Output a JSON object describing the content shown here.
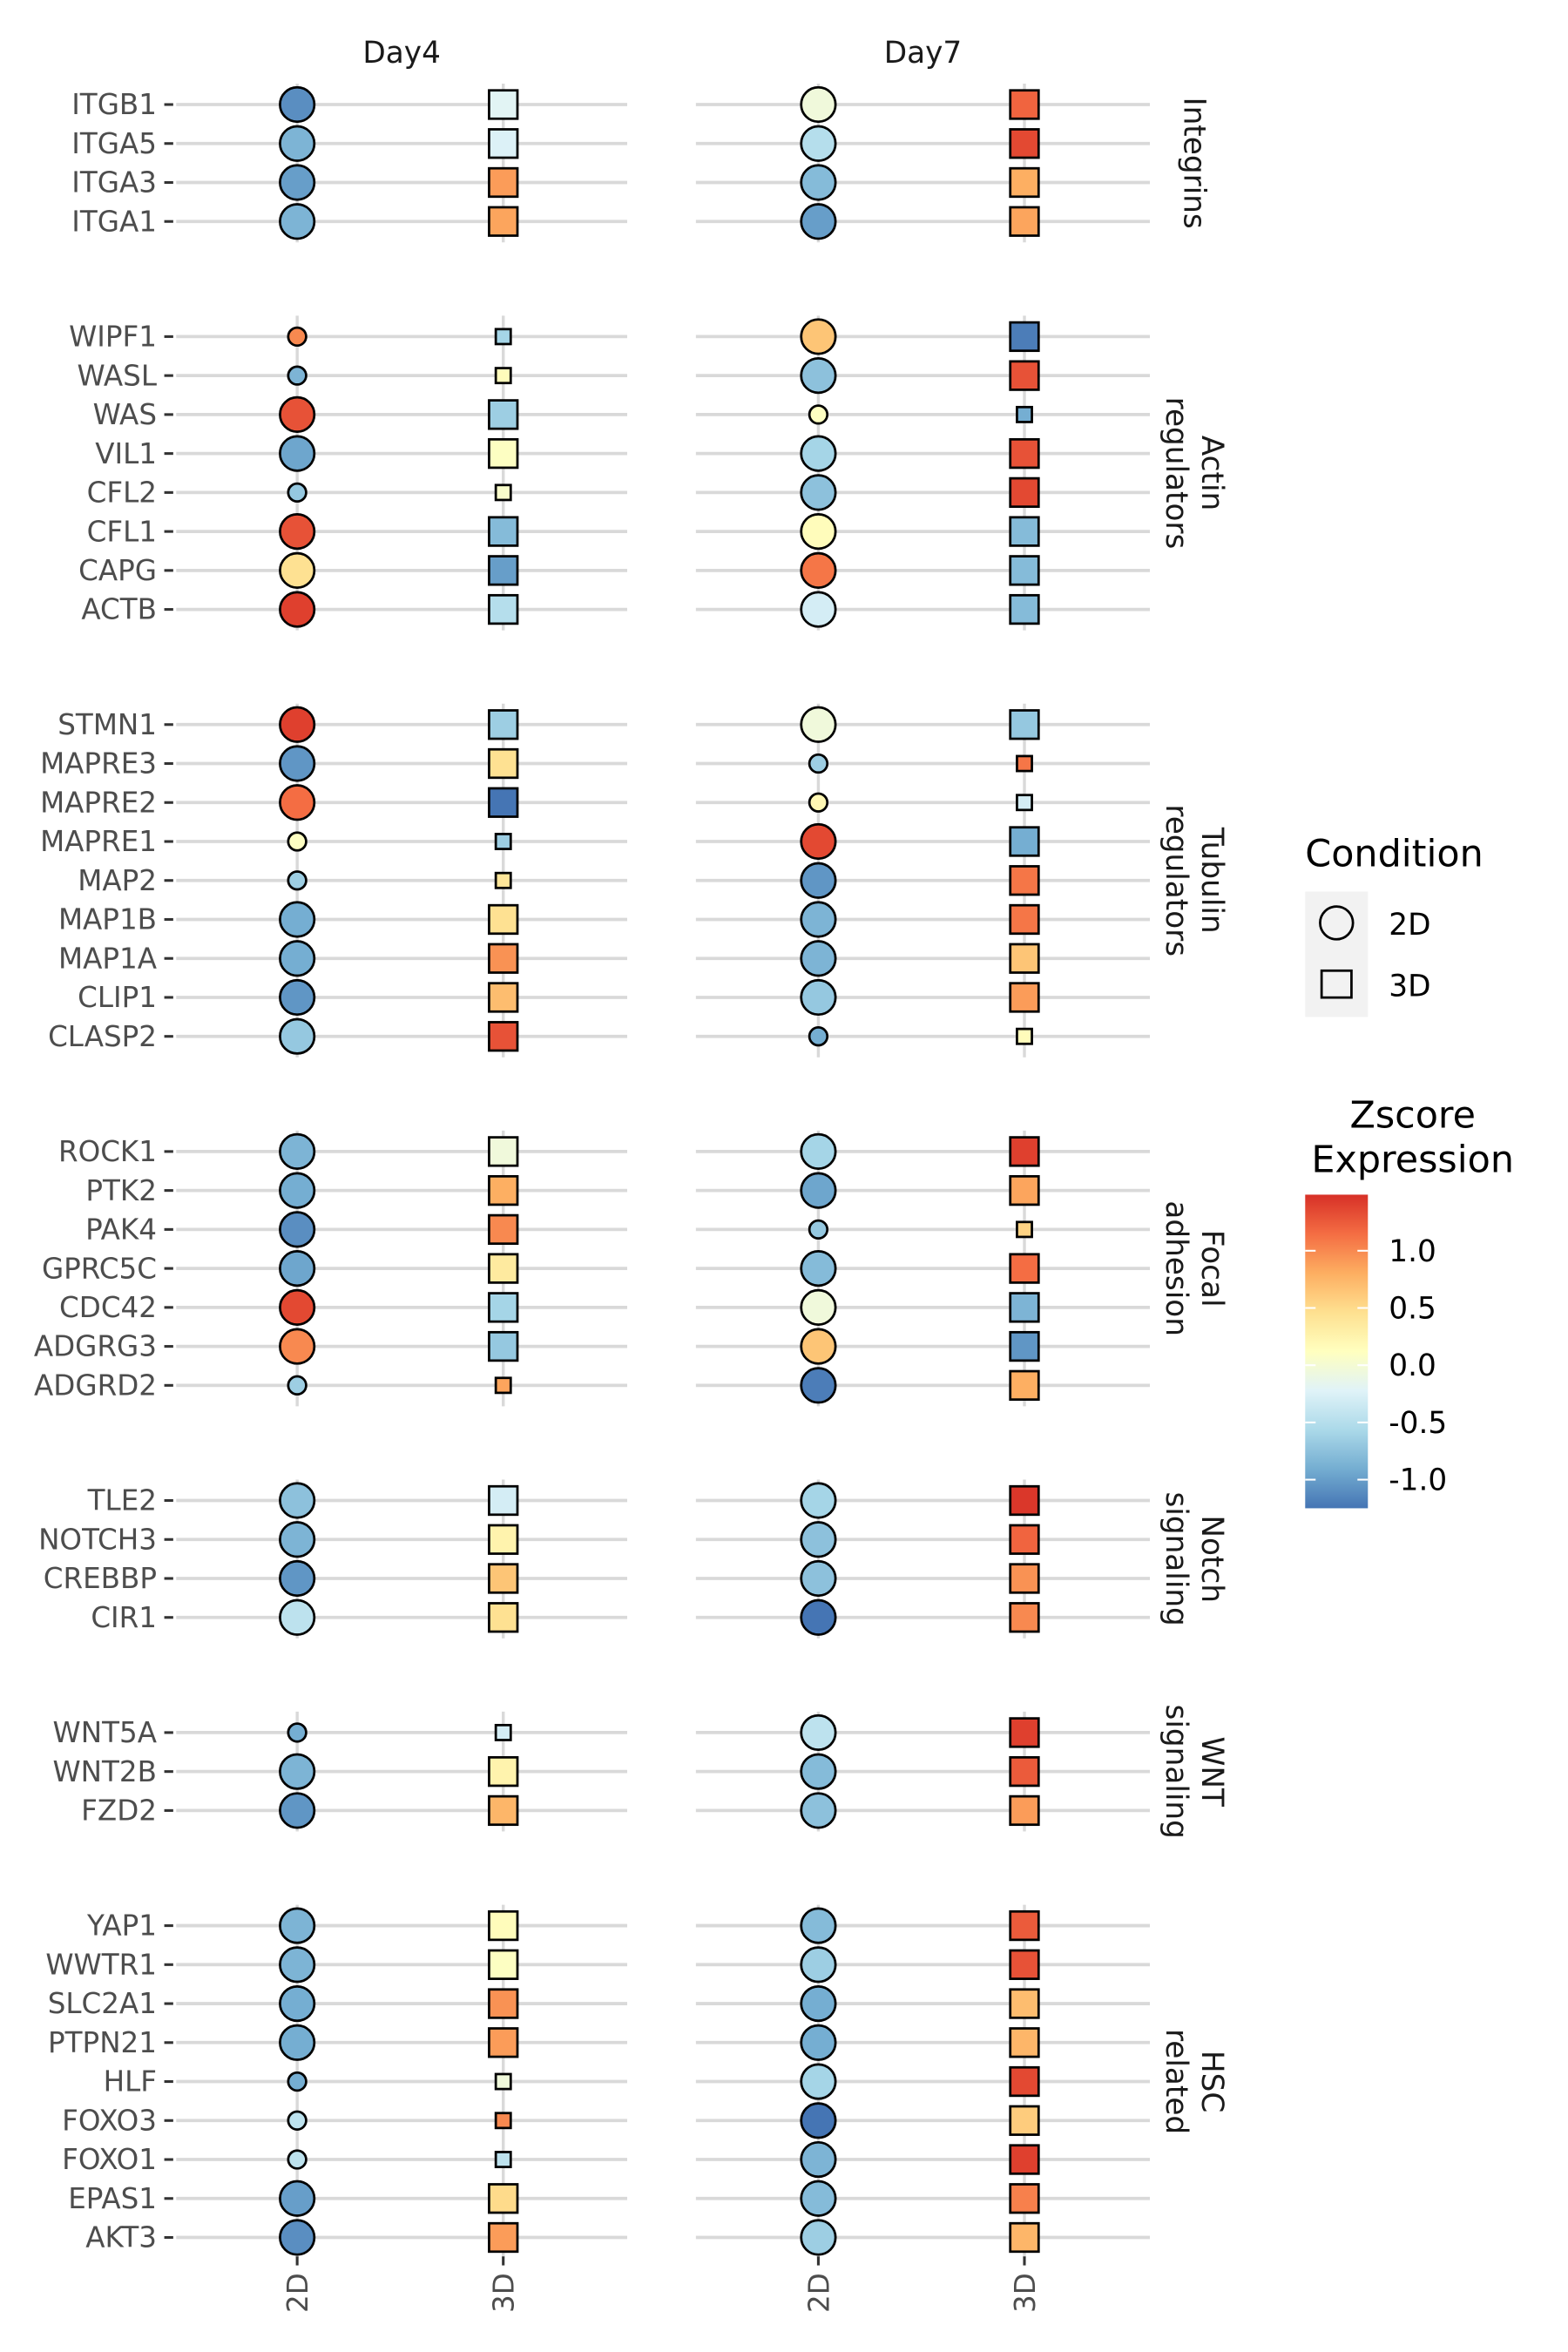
{
  "chart_data": {
    "type": "scatter",
    "subtype": "dot-plot",
    "columns": [
      "Day4",
      "Day7"
    ],
    "x_categories": [
      "2D",
      "3D"
    ],
    "legend": {
      "shape_title": "Condition",
      "shapes": [
        {
          "label": "2D",
          "shape": "circle"
        },
        {
          "label": "3D",
          "shape": "square"
        }
      ],
      "color_title_lines": [
        "Zscore",
        "Expression"
      ],
      "color_ticks": [
        1.0,
        0.5,
        0.0,
        -0.5,
        -1.0
      ],
      "color_tick_labels": [
        "1.0",
        "0.5",
        "0.0",
        "-0.5",
        "-1.0"
      ],
      "color_range": [
        -1.25,
        1.49
      ],
      "palette": [
        "#4575b4",
        "#74add1",
        "#abd9e9",
        "#e0f3f8",
        "#ffffbf",
        "#fee090",
        "#fdae61",
        "#f46d43",
        "#d73027"
      ],
      "placement": "right"
    },
    "value_order": [
      "Day4 2D",
      "Day4 3D",
      "Day7 2D",
      "Day7 3D"
    ],
    "marker_sizes": "large or small, shown by marker size",
    "groups": [
      {
        "label_lines": [
          "Integrins"
        ],
        "genes": [
          {
            "gene": "ITGB1",
            "values": [
              -1.1,
              -0.2,
              -0.05,
              1.2
            ],
            "sizes": [
              "large",
              "large",
              "large",
              "large"
            ]
          },
          {
            "gene": "ITGA5",
            "values": [
              -0.85,
              -0.25,
              -0.5,
              1.35
            ],
            "sizes": [
              "large",
              "large",
              "large",
              "large"
            ]
          },
          {
            "gene": "ITGA3",
            "values": [
              -1.0,
              0.9,
              -0.8,
              0.8
            ],
            "sizes": [
              "large",
              "large",
              "large",
              "large"
            ]
          },
          {
            "gene": "ITGA1",
            "values": [
              -0.85,
              0.85,
              -1.0,
              0.85
            ],
            "sizes": [
              "large",
              "large",
              "large",
              "large"
            ]
          }
        ]
      },
      {
        "label_lines": [
          "Actin",
          "regulators"
        ],
        "genes": [
          {
            "gene": "WIPF1",
            "values": [
              1.0,
              -0.6,
              0.65,
              -1.2
            ],
            "sizes": [
              "small",
              "small",
              "large",
              "large"
            ]
          },
          {
            "gene": "WASL",
            "values": [
              -0.85,
              0.15,
              -0.75,
              1.3
            ],
            "sizes": [
              "small",
              "small",
              "large",
              "large"
            ]
          },
          {
            "gene": "WAS",
            "values": [
              1.3,
              -0.65,
              0.1,
              -0.9
            ],
            "sizes": [
              "large",
              "large",
              "small",
              "small"
            ]
          },
          {
            "gene": "VIL1",
            "values": [
              -0.95,
              0.1,
              -0.6,
              1.3
            ],
            "sizes": [
              "large",
              "large",
              "large",
              "large"
            ]
          },
          {
            "gene": "CFL2",
            "values": [
              -0.7,
              0.05,
              -0.75,
              1.35
            ],
            "sizes": [
              "small",
              "small",
              "large",
              "large"
            ]
          },
          {
            "gene": "CFL1",
            "values": [
              1.3,
              -0.8,
              0.15,
              -0.8
            ],
            "sizes": [
              "large",
              "large",
              "large",
              "large"
            ]
          },
          {
            "gene": "CAPG",
            "values": [
              0.45,
              -1.0,
              1.1,
              -0.8
            ],
            "sizes": [
              "large",
              "large",
              "large",
              "large"
            ]
          },
          {
            "gene": "ACTB",
            "values": [
              1.4,
              -0.5,
              -0.3,
              -0.8
            ],
            "sizes": [
              "large",
              "large",
              "large",
              "large"
            ]
          }
        ]
      },
      {
        "label_lines": [
          "Tubulin",
          "regulators"
        ],
        "genes": [
          {
            "gene": "STMN1",
            "values": [
              1.4,
              -0.65,
              -0.05,
              -0.7
            ],
            "sizes": [
              "large",
              "large",
              "large",
              "large"
            ]
          },
          {
            "gene": "MAPRE3",
            "values": [
              -1.05,
              0.45,
              -0.65,
              1.1
            ],
            "sizes": [
              "large",
              "large",
              "small",
              "small"
            ]
          },
          {
            "gene": "MAPRE2",
            "values": [
              1.15,
              -1.25,
              0.2,
              -0.3
            ],
            "sizes": [
              "large",
              "large",
              "small",
              "small"
            ]
          },
          {
            "gene": "MAPRE1",
            "values": [
              0.1,
              -0.65,
              1.35,
              -0.9
            ],
            "sizes": [
              "small",
              "small",
              "large",
              "large"
            ]
          },
          {
            "gene": "MAP2",
            "values": [
              -0.65,
              0.4,
              -1.05,
              1.1
            ],
            "sizes": [
              "small",
              "small",
              "large",
              "large"
            ]
          },
          {
            "gene": "MAP1B",
            "values": [
              -0.9,
              0.45,
              -0.85,
              1.1
            ],
            "sizes": [
              "large",
              "large",
              "large",
              "large"
            ]
          },
          {
            "gene": "MAP1A",
            "values": [
              -0.9,
              0.95,
              -0.85,
              0.65
            ],
            "sizes": [
              "large",
              "large",
              "large",
              "large"
            ]
          },
          {
            "gene": "CLIP1",
            "values": [
              -1.05,
              0.7,
              -0.7,
              0.9
            ],
            "sizes": [
              "large",
              "large",
              "large",
              "large"
            ]
          },
          {
            "gene": "CLASP2",
            "values": [
              -0.7,
              1.3,
              -0.9,
              0.15
            ],
            "sizes": [
              "large",
              "large",
              "small",
              "small"
            ]
          }
        ]
      },
      {
        "label_lines": [
          "Focal",
          "adhesion"
        ],
        "genes": [
          {
            "gene": "ROCK1",
            "values": [
              -0.85,
              -0.05,
              -0.6,
              1.4
            ],
            "sizes": [
              "large",
              "large",
              "large",
              "large"
            ]
          },
          {
            "gene": "PTK2",
            "values": [
              -0.9,
              0.8,
              -0.95,
              0.85
            ],
            "sizes": [
              "large",
              "large",
              "large",
              "large"
            ]
          },
          {
            "gene": "PAK4",
            "values": [
              -1.1,
              1.0,
              -0.7,
              0.55
            ],
            "sizes": [
              "large",
              "large",
              "small",
              "small"
            ]
          },
          {
            "gene": "GPRC5C",
            "values": [
              -0.95,
              0.35,
              -0.8,
              1.15
            ],
            "sizes": [
              "large",
              "large",
              "large",
              "large"
            ]
          },
          {
            "gene": "CDC42",
            "values": [
              1.35,
              -0.6,
              -0.05,
              -0.85
            ],
            "sizes": [
              "large",
              "large",
              "large",
              "large"
            ]
          },
          {
            "gene": "ADGRG3",
            "values": [
              1.0,
              -0.7,
              0.65,
              -1.05
            ],
            "sizes": [
              "large",
              "large",
              "large",
              "large"
            ]
          },
          {
            "gene": "ADGRD2",
            "values": [
              -0.65,
              0.85,
              -1.2,
              0.8
            ],
            "sizes": [
              "small",
              "small",
              "large",
              "large"
            ]
          }
        ]
      },
      {
        "label_lines": [
          "Notch",
          "signaling"
        ],
        "genes": [
          {
            "gene": "TLE2",
            "values": [
              -0.75,
              -0.3,
              -0.6,
              1.45
            ],
            "sizes": [
              "large",
              "large",
              "large",
              "large"
            ]
          },
          {
            "gene": "NOTCH3",
            "values": [
              -0.85,
              0.25,
              -0.75,
              1.2
            ],
            "sizes": [
              "large",
              "large",
              "large",
              "large"
            ]
          },
          {
            "gene": "CREBBP",
            "values": [
              -1.05,
              0.65,
              -0.75,
              0.95
            ],
            "sizes": [
              "large",
              "large",
              "large",
              "large"
            ]
          },
          {
            "gene": "CIR1",
            "values": [
              -0.45,
              0.45,
              -1.25,
              1.0
            ],
            "sizes": [
              "large",
              "large",
              "large",
              "large"
            ]
          }
        ]
      },
      {
        "label_lines": [
          "WNT",
          "signaling"
        ],
        "genes": [
          {
            "gene": "WNT5A",
            "values": [
              -0.9,
              -0.3,
              -0.45,
              1.4
            ],
            "sizes": [
              "small",
              "small",
              "large",
              "large"
            ]
          },
          {
            "gene": "WNT2B",
            "values": [
              -0.85,
              0.25,
              -0.8,
              1.25
            ],
            "sizes": [
              "large",
              "large",
              "large",
              "large"
            ]
          },
          {
            "gene": "FZD2",
            "values": [
              -1.05,
              0.75,
              -0.75,
              0.9
            ],
            "sizes": [
              "large",
              "large",
              "large",
              "large"
            ]
          }
        ]
      },
      {
        "label_lines": [
          "HSC",
          "related"
        ],
        "genes": [
          {
            "gene": "YAP1",
            "values": [
              -0.85,
              0.15,
              -0.8,
              1.25
            ],
            "sizes": [
              "large",
              "large",
              "large",
              "large"
            ]
          },
          {
            "gene": "WWTR1",
            "values": [
              -0.85,
              0.1,
              -0.65,
              1.3
            ],
            "sizes": [
              "large",
              "large",
              "large",
              "large"
            ]
          },
          {
            "gene": "SLC2A1",
            "values": [
              -0.9,
              0.95,
              -0.9,
              0.7
            ],
            "sizes": [
              "large",
              "large",
              "large",
              "large"
            ]
          },
          {
            "gene": "PTPN21",
            "values": [
              -0.9,
              0.9,
              -0.9,
              0.75
            ],
            "sizes": [
              "large",
              "large",
              "large",
              "large"
            ]
          },
          {
            "gene": "HLF",
            "values": [
              -0.9,
              -0.05,
              -0.6,
              1.35
            ],
            "sizes": [
              "small",
              "small",
              "large",
              "large"
            ]
          },
          {
            "gene": "FOXO3",
            "values": [
              -0.45,
              1.0,
              -1.35,
              0.6
            ],
            "sizes": [
              "small",
              "small",
              "large",
              "large"
            ]
          },
          {
            "gene": "FOXO1",
            "values": [
              -0.45,
              -0.45,
              -0.85,
              1.4
            ],
            "sizes": [
              "small",
              "small",
              "large",
              "large"
            ]
          },
          {
            "gene": "EPAS1",
            "values": [
              -1.0,
              0.5,
              -0.8,
              1.05
            ],
            "sizes": [
              "large",
              "large",
              "large",
              "large"
            ]
          },
          {
            "gene": "AKT3",
            "values": [
              -1.1,
              0.9,
              -0.65,
              0.75
            ],
            "sizes": [
              "large",
              "large",
              "large",
              "large"
            ]
          }
        ]
      }
    ]
  }
}
